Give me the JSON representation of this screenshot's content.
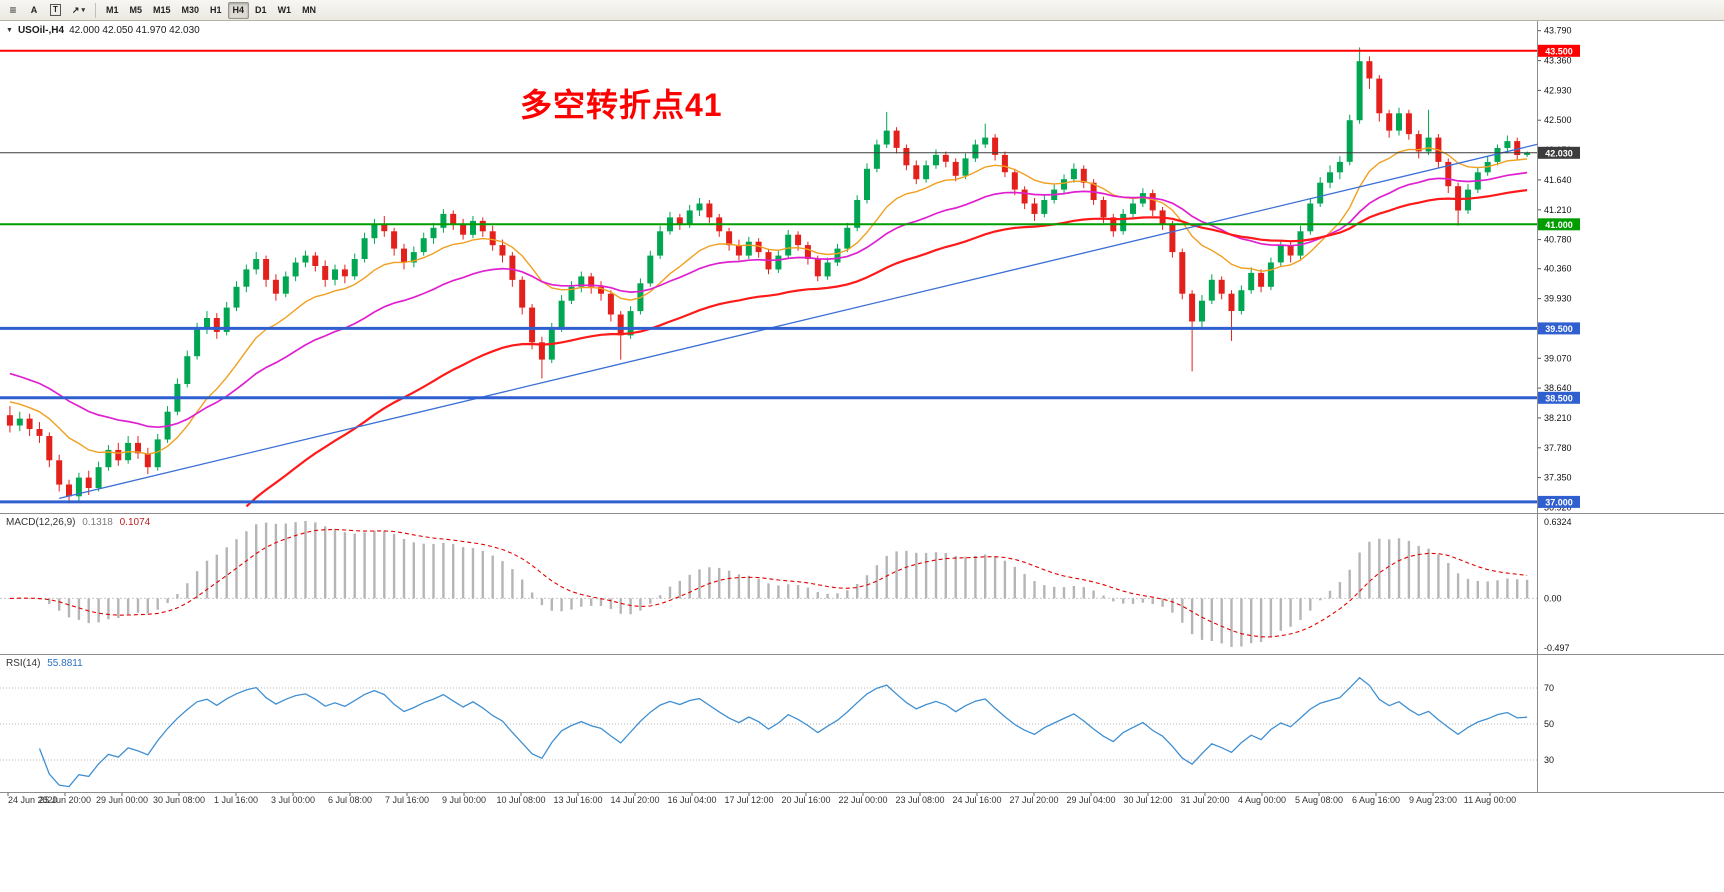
{
  "toolbar": {
    "timeframes": [
      "M1",
      "M5",
      "M15",
      "M30",
      "H1",
      "H4",
      "D1",
      "W1",
      "MN"
    ],
    "active_timeframe": "H4",
    "text_tool_label": "A",
    "label_tool_label": "T"
  },
  "icons": {
    "menu": "≡",
    "arrow": "↗",
    "caret": "▾",
    "title_caret": "▼"
  },
  "chart": {
    "title": "USOil-,H4",
    "ohlc_text": "42.000 42.050 41.970 42.030",
    "annotation": {
      "text": "多空转折点41",
      "color": "#ff0000"
    }
  },
  "chart_data": {
    "type": "candlestick",
    "symbol": "USOil-",
    "timeframe": "H4",
    "ylim": [
      36.84,
      43.93
    ],
    "bull_color": "#00a651",
    "bear_color": "#e3201b",
    "price_axis_labels": [
      "43.790",
      "43.360",
      "42.930",
      "42.500",
      "42.070",
      "41.640",
      "41.210",
      "40.780",
      "40.360",
      "39.930",
      "39.500",
      "39.070",
      "38.640",
      "38.210",
      "37.780",
      "37.350",
      "36.920"
    ],
    "time_labels": [
      "24 Jun 2020",
      "25 Jun 20:00",
      "29 Jun 00:00",
      "30 Jun 08:00",
      "1 Jul 16:00",
      "3 Jul 00:00",
      "6 Jul 08:00",
      "7 Jul 16:00",
      "9 Jul 00:00",
      "10 Jul 08:00",
      "13 Jul 16:00",
      "14 Jul 20:00",
      "16 Jul 04:00",
      "17 Jul 12:00",
      "20 Jul 16:00",
      "22 Jul 00:00",
      "23 Jul 08:00",
      "24 Jul 16:00",
      "27 Jul 20:00",
      "29 Jul 04:00",
      "30 Jul 12:00",
      "31 Jul 20:00",
      "4 Aug 00:00",
      "5 Aug 08:00",
      "6 Aug 16:00",
      "9 Aug 23:00",
      "11 Aug 00:00"
    ],
    "horizontal_lines": [
      {
        "price": 43.5,
        "color": "#ff0000",
        "width": 2,
        "tag": "43.500"
      },
      {
        "price": 42.03,
        "color": "#3c3c3c",
        "width": 1,
        "tag": "42.030"
      },
      {
        "price": 41.0,
        "color": "#009c00",
        "width": 2,
        "tag": "41.000"
      },
      {
        "price": 39.5,
        "color": "#3060d0",
        "width": 3,
        "tag": "39.500"
      },
      {
        "price": 38.5,
        "color": "#3060d0",
        "width": 3,
        "tag": "38.500"
      },
      {
        "price": 37.0,
        "color": "#3060d0",
        "width": 3,
        "tag": "37.000"
      }
    ],
    "trendline": {
      "from_index": 5,
      "from_price": 37.05,
      "to_index": 154,
      "to_price": 42.1,
      "color": "#3b6fd6",
      "width": 1.3
    },
    "moving_averages": [
      {
        "period": 13,
        "seed": 38.5,
        "color": "#f0a020",
        "width": 1.4
      },
      {
        "period": 30,
        "seed": 38.9,
        "color": "#e020d0",
        "width": 1.7
      },
      {
        "period": 55,
        "seed": 34.6,
        "color": "#ff1a1a",
        "width": 2.2
      }
    ],
    "macd": {
      "label": "MACD(12,26,9)",
      "value_main": "0.1318",
      "value_signal": "0.1074",
      "fast": 12,
      "slow": 26,
      "signal_period": 9,
      "axis_labels": [
        "0.6324",
        "0.00",
        "-0.497"
      ],
      "histogram_color": "#b5b5b5",
      "signal_color": "#e00000"
    },
    "rsi": {
      "label": "RSI(14)",
      "value": "55.8811",
      "period": 14,
      "levels": [
        70,
        50,
        30
      ],
      "line_color": "#3f8fd2"
    },
    "candles": [
      [
        38.25,
        38.38,
        38.0,
        38.1
      ],
      [
        38.1,
        38.3,
        38.02,
        38.2
      ],
      [
        38.2,
        38.27,
        37.95,
        38.05
      ],
      [
        38.05,
        38.15,
        37.85,
        37.95
      ],
      [
        37.95,
        38.0,
        37.5,
        37.6
      ],
      [
        37.6,
        37.68,
        37.15,
        37.25
      ],
      [
        37.25,
        37.32,
        36.98,
        37.08
      ],
      [
        37.08,
        37.42,
        37.02,
        37.35
      ],
      [
        37.35,
        37.45,
        37.1,
        37.2
      ],
      [
        37.2,
        37.58,
        37.15,
        37.5
      ],
      [
        37.5,
        37.82,
        37.45,
        37.75
      ],
      [
        37.75,
        37.85,
        37.52,
        37.6
      ],
      [
        37.6,
        37.95,
        37.55,
        37.85
      ],
      [
        37.85,
        37.95,
        37.62,
        37.7
      ],
      [
        37.7,
        37.78,
        37.4,
        37.5
      ],
      [
        37.5,
        37.98,
        37.45,
        37.9
      ],
      [
        37.9,
        38.38,
        37.85,
        38.3
      ],
      [
        38.3,
        38.78,
        38.25,
        38.7
      ],
      [
        38.7,
        39.18,
        38.65,
        39.1
      ],
      [
        39.1,
        39.58,
        39.05,
        39.5
      ],
      [
        39.5,
        39.75,
        39.42,
        39.65
      ],
      [
        39.65,
        39.72,
        39.35,
        39.45
      ],
      [
        39.45,
        39.88,
        39.4,
        39.8
      ],
      [
        39.8,
        40.18,
        39.75,
        40.1
      ],
      [
        40.1,
        40.42,
        40.02,
        40.35
      ],
      [
        40.35,
        40.6,
        40.28,
        40.5
      ],
      [
        40.5,
        40.55,
        40.1,
        40.2
      ],
      [
        40.2,
        40.28,
        39.9,
        40.0
      ],
      [
        40.0,
        40.32,
        39.95,
        40.25
      ],
      [
        40.25,
        40.52,
        40.18,
        40.45
      ],
      [
        40.45,
        40.62,
        40.38,
        40.55
      ],
      [
        40.55,
        40.6,
        40.32,
        40.4
      ],
      [
        40.4,
        40.48,
        40.1,
        40.2
      ],
      [
        40.2,
        40.42,
        40.12,
        40.35
      ],
      [
        40.35,
        40.42,
        40.15,
        40.25
      ],
      [
        40.25,
        40.58,
        40.2,
        40.5
      ],
      [
        40.5,
        40.88,
        40.45,
        40.8
      ],
      [
        40.8,
        41.08,
        40.72,
        41.0
      ],
      [
        41.0,
        41.12,
        40.82,
        40.9
      ],
      [
        40.9,
        40.95,
        40.55,
        40.65
      ],
      [
        40.65,
        40.72,
        40.35,
        40.45
      ],
      [
        40.45,
        40.68,
        40.38,
        40.6
      ],
      [
        40.6,
        40.88,
        40.55,
        40.8
      ],
      [
        40.8,
        41.02,
        40.72,
        40.95
      ],
      [
        40.95,
        41.22,
        40.88,
        41.15
      ],
      [
        41.15,
        41.2,
        40.92,
        41.0
      ],
      [
        41.0,
        41.08,
        40.78,
        40.85
      ],
      [
        40.85,
        41.12,
        40.8,
        41.05
      ],
      [
        41.05,
        41.1,
        40.82,
        40.9
      ],
      [
        40.9,
        40.98,
        40.62,
        40.7
      ],
      [
        40.7,
        40.78,
        40.45,
        40.55
      ],
      [
        40.55,
        40.6,
        40.1,
        40.2
      ],
      [
        40.2,
        40.25,
        39.7,
        39.8
      ],
      [
        39.8,
        39.85,
        39.2,
        39.3
      ],
      [
        39.3,
        39.38,
        38.78,
        39.05
      ],
      [
        39.05,
        39.58,
        39.0,
        39.5
      ],
      [
        39.5,
        39.98,
        39.45,
        39.9
      ],
      [
        39.9,
        40.18,
        39.85,
        40.1
      ],
      [
        40.1,
        40.32,
        40.02,
        40.25
      ],
      [
        40.25,
        40.3,
        40.0,
        40.1
      ],
      [
        40.1,
        40.18,
        39.9,
        40.0
      ],
      [
        40.0,
        40.05,
        39.6,
        39.7
      ],
      [
        39.7,
        39.75,
        39.05,
        39.4
      ],
      [
        39.4,
        39.82,
        39.35,
        39.75
      ],
      [
        39.75,
        40.22,
        39.7,
        40.15
      ],
      [
        40.15,
        40.62,
        40.1,
        40.55
      ],
      [
        40.55,
        40.98,
        40.5,
        40.9
      ],
      [
        40.9,
        41.18,
        40.85,
        41.1
      ],
      [
        41.1,
        41.15,
        40.92,
        41.0
      ],
      [
        41.0,
        41.28,
        40.95,
        41.2
      ],
      [
        41.2,
        41.38,
        41.12,
        41.3
      ],
      [
        41.3,
        41.35,
        41.02,
        41.1
      ],
      [
        41.1,
        41.15,
        40.82,
        40.9
      ],
      [
        40.9,
        40.95,
        40.62,
        40.7
      ],
      [
        40.7,
        40.78,
        40.48,
        40.55
      ],
      [
        40.55,
        40.82,
        40.5,
        40.75
      ],
      [
        40.75,
        40.8,
        40.52,
        40.6
      ],
      [
        40.6,
        40.65,
        40.28,
        40.35
      ],
      [
        40.35,
        40.62,
        40.3,
        40.55
      ],
      [
        40.55,
        40.92,
        40.5,
        40.85
      ],
      [
        40.85,
        40.9,
        40.62,
        40.7
      ],
      [
        40.7,
        40.75,
        40.42,
        40.5
      ],
      [
        40.5,
        40.55,
        40.18,
        40.25
      ],
      [
        40.25,
        40.52,
        40.2,
        40.45
      ],
      [
        40.45,
        40.72,
        40.4,
        40.65
      ],
      [
        40.65,
        41.02,
        40.6,
        40.95
      ],
      [
        40.95,
        41.42,
        40.9,
        41.35
      ],
      [
        41.35,
        41.88,
        41.3,
        41.8
      ],
      [
        41.8,
        42.22,
        41.75,
        42.15
      ],
      [
        42.15,
        42.62,
        42.1,
        42.35
      ],
      [
        42.35,
        42.4,
        42.02,
        42.1
      ],
      [
        42.1,
        42.15,
        41.78,
        41.85
      ],
      [
        41.85,
        41.92,
        41.58,
        41.65
      ],
      [
        41.65,
        41.92,
        41.6,
        41.85
      ],
      [
        41.85,
        42.08,
        41.8,
        42.0
      ],
      [
        42.0,
        42.05,
        41.82,
        41.9
      ],
      [
        41.9,
        41.95,
        41.62,
        41.7
      ],
      [
        41.7,
        42.02,
        41.65,
        41.95
      ],
      [
        41.95,
        42.22,
        41.9,
        42.15
      ],
      [
        42.15,
        42.45,
        42.1,
        42.25
      ],
      [
        42.25,
        42.3,
        41.92,
        42.0
      ],
      [
        42.0,
        42.05,
        41.68,
        41.75
      ],
      [
        41.75,
        41.8,
        41.42,
        41.5
      ],
      [
        41.5,
        41.55,
        41.22,
        41.3
      ],
      [
        41.3,
        41.38,
        41.05,
        41.15
      ],
      [
        41.15,
        41.42,
        41.1,
        41.35
      ],
      [
        41.35,
        41.58,
        41.3,
        41.5
      ],
      [
        41.5,
        41.72,
        41.45,
        41.65
      ],
      [
        41.65,
        41.88,
        41.6,
        41.8
      ],
      [
        41.8,
        41.85,
        41.52,
        41.6
      ],
      [
        41.6,
        41.65,
        41.28,
        41.35
      ],
      [
        41.35,
        41.4,
        41.02,
        41.1
      ],
      [
        41.1,
        41.15,
        40.82,
        40.9
      ],
      [
        40.9,
        41.22,
        40.85,
        41.15
      ],
      [
        41.15,
        41.38,
        41.1,
        41.3
      ],
      [
        41.3,
        41.52,
        41.25,
        41.45
      ],
      [
        41.45,
        41.5,
        41.12,
        41.2
      ],
      [
        41.2,
        41.25,
        40.92,
        41.0
      ],
      [
        41.0,
        41.05,
        40.52,
        40.6
      ],
      [
        40.6,
        40.65,
        39.92,
        40.0
      ],
      [
        40.0,
        40.05,
        38.88,
        39.6
      ],
      [
        39.6,
        39.98,
        39.52,
        39.9
      ],
      [
        39.9,
        40.28,
        39.85,
        40.2
      ],
      [
        40.2,
        40.25,
        39.92,
        40.0
      ],
      [
        40.0,
        40.05,
        39.32,
        39.75
      ],
      [
        39.75,
        40.12,
        39.7,
        40.05
      ],
      [
        40.05,
        40.38,
        40.0,
        40.3
      ],
      [
        40.3,
        40.35,
        40.02,
        40.1
      ],
      [
        40.1,
        40.52,
        40.05,
        40.45
      ],
      [
        40.45,
        40.78,
        40.4,
        40.7
      ],
      [
        40.7,
        40.75,
        40.45,
        40.55
      ],
      [
        40.55,
        40.98,
        40.5,
        40.9
      ],
      [
        40.9,
        41.38,
        40.85,
        41.3
      ],
      [
        41.3,
        41.68,
        41.25,
        41.6
      ],
      [
        41.6,
        41.85,
        41.52,
        41.75
      ],
      [
        41.75,
        41.98,
        41.65,
        41.9
      ],
      [
        41.9,
        42.58,
        41.85,
        42.5
      ],
      [
        42.5,
        43.55,
        42.45,
        43.35
      ],
      [
        43.35,
        43.42,
        42.95,
        43.1
      ],
      [
        43.1,
        43.15,
        42.48,
        42.6
      ],
      [
        42.6,
        42.65,
        42.25,
        42.35
      ],
      [
        42.35,
        42.68,
        42.28,
        42.6
      ],
      [
        42.6,
        42.65,
        42.22,
        42.3
      ],
      [
        42.3,
        42.35,
        41.95,
        42.05
      ],
      [
        42.05,
        42.65,
        42.0,
        42.25
      ],
      [
        42.25,
        42.3,
        41.82,
        41.9
      ],
      [
        41.9,
        41.95,
        41.45,
        41.55
      ],
      [
        41.55,
        41.6,
        40.98,
        41.2
      ],
      [
        41.2,
        41.58,
        41.15,
        41.5
      ],
      [
        41.5,
        41.82,
        41.45,
        41.75
      ],
      [
        41.75,
        41.98,
        41.7,
        41.9
      ],
      [
        41.9,
        42.15,
        41.85,
        42.1
      ],
      [
        42.1,
        42.28,
        42.02,
        42.2
      ],
      [
        42.2,
        42.25,
        41.92,
        42.0
      ],
      [
        42.0,
        42.05,
        41.97,
        42.03
      ]
    ]
  }
}
